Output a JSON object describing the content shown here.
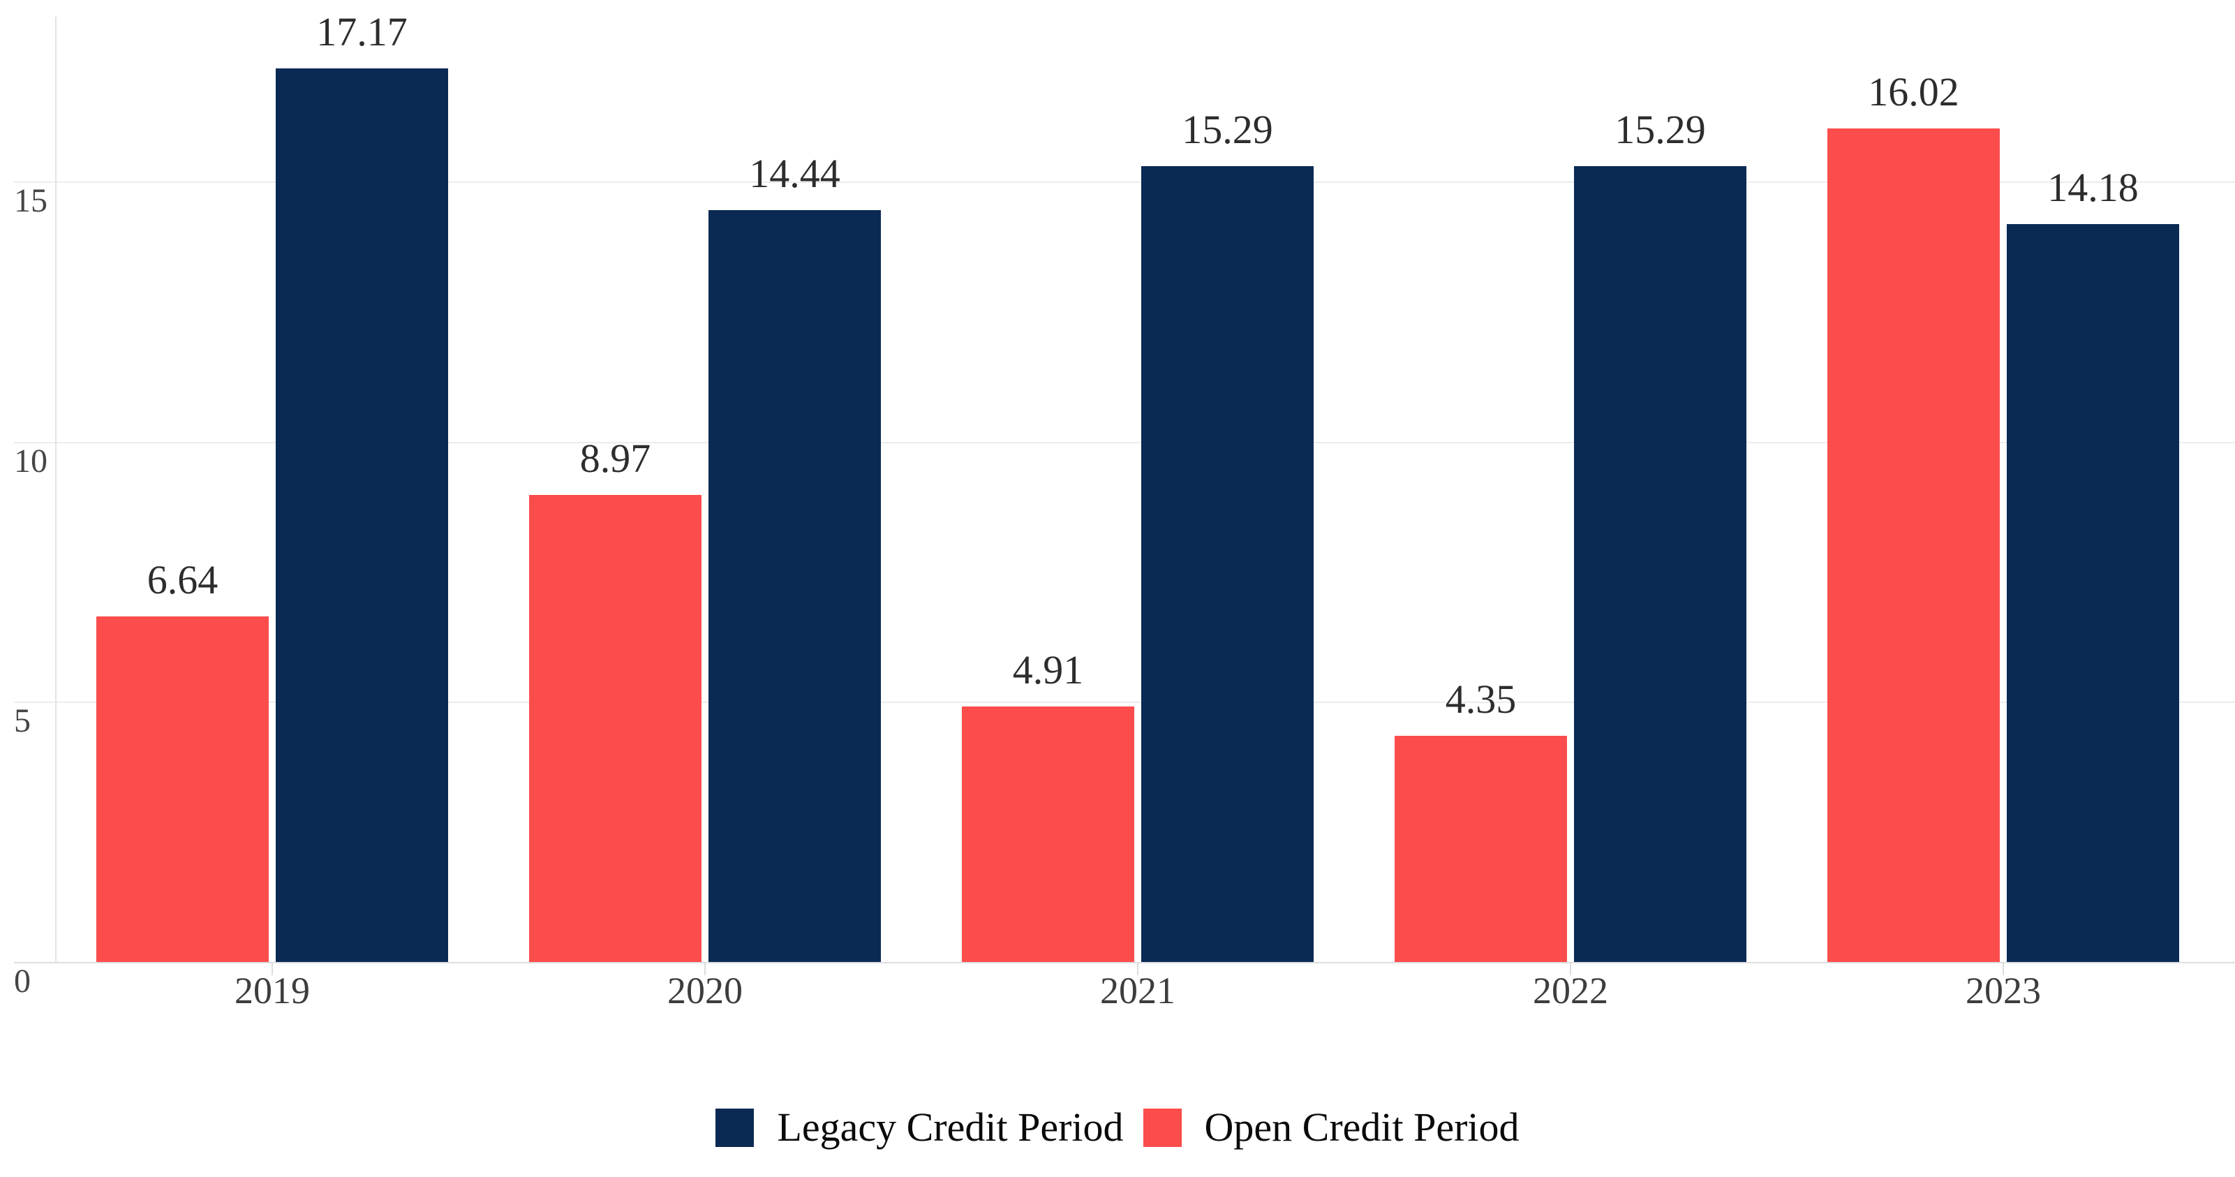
{
  "chart_data": {
    "type": "bar",
    "categories": [
      "2019",
      "2020",
      "2021",
      "2022",
      "2023"
    ],
    "series": [
      {
        "name": "Legacy Credit Period",
        "color": "#0A2A54",
        "values": [
          17.17,
          14.44,
          15.29,
          15.29,
          14.18
        ]
      },
      {
        "name": "Open Credit Period",
        "color": "#FC4D4C",
        "values": [
          6.64,
          8.97,
          4.91,
          4.35,
          16.02
        ]
      }
    ],
    "bar_order_in_group": [
      "Open Credit Period",
      "Legacy Credit Period"
    ],
    "value_labels": [
      "6.64",
      "17.17",
      "8.97",
      "14.44",
      "4.91",
      "15.29",
      "4.35",
      "15.29",
      "16.02",
      "14.18"
    ],
    "yaxis": {
      "ticks": [
        0,
        5,
        10,
        15
      ],
      "range": [
        0,
        18.2
      ],
      "grid": true
    },
    "legend": {
      "position": "bottom",
      "labels": [
        "Legacy Credit Period",
        "Open Credit Period"
      ]
    }
  },
  "colors": {
    "background": "#ffffff",
    "legacy_bar": "#0A2A54",
    "open_bar": "#FC4D4C",
    "gridline": "#ececec",
    "axis_line": "#e0e0e0",
    "tick_label": "#454545",
    "value_label": "#2d2d2d",
    "legend_text": "#0a0a0a"
  }
}
